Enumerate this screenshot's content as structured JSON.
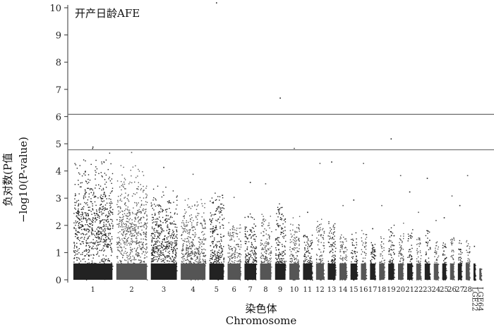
{
  "chart_data": {
    "type": "scatter",
    "annotation": "开产日龄AFE",
    "ylabel_line1": "负对数(P值",
    "ylabel_line2": "−log10(P-value)",
    "xlabel_cn": "染色体",
    "xlabel_en": "Chromosome",
    "ylim": [
      0,
      10
    ],
    "yticks": [
      0,
      1,
      2,
      3,
      4,
      5,
      6,
      7,
      8,
      9,
      10
    ],
    "thresholds": [
      6.08,
      4.78
    ],
    "colors": [
      "#222222",
      "#555555"
    ],
    "chromosomes": [
      {
        "name": "1",
        "max": 4.9,
        "base": 2.5,
        "hilo": 1.0,
        "label": "1"
      },
      {
        "name": "2",
        "max": 4.7,
        "base": 2.4,
        "hilo": 0.85,
        "label": "2"
      },
      {
        "name": "3",
        "max": 4.15,
        "base": 2.2,
        "hilo": 0.7,
        "label": "3"
      },
      {
        "name": "4",
        "max": 3.9,
        "base": 2.1,
        "hilo": 0.5,
        "label": "4"
      },
      {
        "name": "5",
        "max": 10.2,
        "base": 2.6,
        "hilo": 0.35,
        "label": "5"
      },
      {
        "name": "6",
        "max": 3.05,
        "base": 1.7,
        "hilo": 0.3,
        "label": "6"
      },
      {
        "name": "7",
        "max": 3.6,
        "base": 2.0,
        "hilo": 0.3,
        "label": "7"
      },
      {
        "name": "8",
        "max": 3.55,
        "base": 2.0,
        "hilo": 0.28,
        "label": "8"
      },
      {
        "name": "9",
        "max": 6.7,
        "base": 2.4,
        "hilo": 0.28,
        "label": "9"
      },
      {
        "name": "10",
        "max": 4.85,
        "base": 2.0,
        "hilo": 0.24,
        "label": "10"
      },
      {
        "name": "11",
        "max": 2.5,
        "base": 1.6,
        "hilo": 0.2,
        "label": "11"
      },
      {
        "name": "12",
        "max": 4.3,
        "base": 1.9,
        "hilo": 0.2,
        "label": "12"
      },
      {
        "name": "13",
        "max": 4.35,
        "base": 1.9,
        "hilo": 0.18,
        "label": "13"
      },
      {
        "name": "14",
        "max": 2.75,
        "base": 1.5,
        "hilo": 0.16,
        "label": "14"
      },
      {
        "name": "15",
        "max": 2.95,
        "base": 1.6,
        "hilo": 0.15,
        "label": "15"
      },
      {
        "name": "16",
        "max": 4.3,
        "base": 1.8,
        "hilo": 0.1,
        "label": "16"
      },
      {
        "name": "17",
        "max": 1.9,
        "base": 1.3,
        "hilo": 0.12,
        "label": "17"
      },
      {
        "name": "18",
        "max": 2.75,
        "base": 1.5,
        "hilo": 0.12,
        "label": "18"
      },
      {
        "name": "19",
        "max": 5.2,
        "base": 2.0,
        "hilo": 0.12,
        "label": "19"
      },
      {
        "name": "20",
        "max": 3.85,
        "base": 1.9,
        "hilo": 0.12,
        "label": "20"
      },
      {
        "name": "21",
        "max": 3.25,
        "base": 1.7,
        "hilo": 0.1,
        "label": "21"
      },
      {
        "name": "22",
        "max": 2.5,
        "base": 1.5,
        "hilo": 0.1,
        "label": "22"
      },
      {
        "name": "23",
        "max": 3.75,
        "base": 1.8,
        "hilo": 0.1,
        "label": "23"
      },
      {
        "name": "24",
        "max": 2.2,
        "base": 1.4,
        "hilo": 0.08,
        "label": "24"
      },
      {
        "name": "25",
        "max": 2.3,
        "base": 1.4,
        "hilo": 0.08,
        "label": "25"
      },
      {
        "name": "26",
        "max": 3.1,
        "base": 1.5,
        "hilo": 0.08,
        "label": "26"
      },
      {
        "name": "27",
        "max": 2.75,
        "base": 1.4,
        "hilo": 0.07,
        "label": "27"
      },
      {
        "name": "28",
        "max": 3.85,
        "base": 1.6,
        "hilo": 0.07,
        "label": "28"
      },
      {
        "name": "LGE22",
        "max": 1.25,
        "base": 0.6,
        "hilo": 0.02,
        "label": "LGE22"
      },
      {
        "name": "LGE64",
        "max": 0.42,
        "base": 0.42,
        "hilo": 0.01,
        "label": "LGE64"
      }
    ]
  }
}
